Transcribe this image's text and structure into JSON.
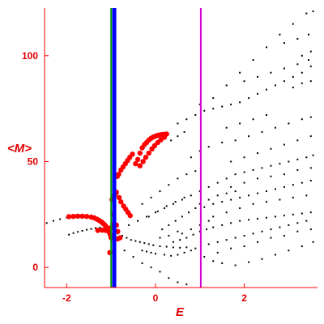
{
  "chart_data": {
    "type": "scatter",
    "title": "",
    "xlabel": "E",
    "ylabel": "<M>",
    "xlim": [
      -2.5,
      3.65
    ],
    "ylim": [
      -9.5,
      122.5
    ],
    "x_ticks": [
      -2,
      0,
      2
    ],
    "y_ticks": [
      0,
      50,
      100
    ],
    "grid": false,
    "legend": "none",
    "colors": {
      "axes": "#ff0000",
      "tick_labels": "#e00000",
      "levels": "#000000",
      "highlight": "#ff0000",
      "line_green": "#00a000",
      "line_blue": "#0000ff",
      "line_magenta": "#d000d0"
    },
    "vertical_lines": [
      {
        "x": -1.0,
        "color": "#00a000"
      },
      {
        "x": -0.93,
        "color": "#0000ff"
      },
      {
        "x": 1.02,
        "color": "#d000d0"
      }
    ],
    "series": [
      {
        "marker": "small-dot",
        "points": [
          [
            -2.45,
            21
          ],
          [
            -2.3,
            22
          ],
          [
            -2.15,
            22.8
          ],
          [
            -2.0,
            23.5
          ],
          [
            -1.85,
            24
          ],
          [
            -1.75,
            24.2
          ],
          [
            -1.95,
            15.5
          ],
          [
            -1.85,
            16.2
          ],
          [
            -1.75,
            16.8
          ],
          [
            -1.65,
            17.3
          ],
          [
            -1.55,
            17.8
          ],
          [
            -1.45,
            18.2
          ],
          [
            -1.35,
            18.6
          ],
          [
            -1.25,
            18.8
          ],
          [
            -0.85,
            16
          ],
          [
            -0.75,
            15
          ],
          [
            -0.65,
            14
          ],
          [
            -0.55,
            13
          ],
          [
            -0.45,
            12.5
          ],
          [
            -0.35,
            12
          ],
          [
            -0.25,
            11.5
          ],
          [
            -0.15,
            11
          ],
          [
            -0.05,
            10.5
          ],
          [
            0.1,
            10
          ],
          [
            0.25,
            9.8
          ],
          [
            0.4,
            9.5
          ],
          [
            0.55,
            9.3
          ],
          [
            0.7,
            9.5
          ],
          [
            -0.3,
            8
          ],
          [
            -0.2,
            7.5
          ],
          [
            -0.1,
            7
          ],
          [
            0.0,
            6.5
          ],
          [
            0.2,
            6
          ],
          [
            0.35,
            5.5
          ],
          [
            0.5,
            6
          ],
          [
            0.65,
            7
          ],
          [
            0.8,
            8
          ],
          [
            0.9,
            9
          ],
          [
            0.4,
            12
          ],
          [
            0.55,
            13
          ],
          [
            0.7,
            14
          ],
          [
            0.85,
            15.5
          ],
          [
            1.0,
            17
          ],
          [
            1.15,
            18
          ],
          [
            1.3,
            19
          ],
          [
            1.5,
            20
          ],
          [
            1.7,
            21
          ],
          [
            1.9,
            22
          ],
          [
            2.1,
            22.5
          ],
          [
            2.3,
            23
          ],
          [
            2.5,
            23.5
          ],
          [
            2.7,
            24
          ],
          [
            2.9,
            24.5
          ],
          [
            3.1,
            25
          ],
          [
            3.3,
            25.5
          ],
          [
            3.5,
            26
          ],
          [
            1.2,
            11
          ],
          [
            1.4,
            12
          ],
          [
            1.6,
            13
          ],
          [
            1.8,
            14
          ],
          [
            2.0,
            15
          ],
          [
            2.2,
            16
          ],
          [
            2.4,
            17
          ],
          [
            2.6,
            18
          ],
          [
            2.8,
            19
          ],
          [
            3.0,
            20
          ],
          [
            3.2,
            21
          ],
          [
            3.4,
            22
          ],
          [
            1.1,
            5
          ],
          [
            1.3,
            3
          ],
          [
            1.5,
            2
          ],
          [
            1.8,
            1
          ],
          [
            2.1,
            2.5
          ],
          [
            2.4,
            4
          ],
          [
            2.7,
            6
          ],
          [
            3.0,
            8
          ],
          [
            3.3,
            10
          ],
          [
            3.55,
            12
          ],
          [
            -0.6,
            20
          ],
          [
            -0.4,
            22
          ],
          [
            -0.2,
            24
          ],
          [
            0.0,
            26
          ],
          [
            0.2,
            28
          ],
          [
            0.4,
            30
          ],
          [
            0.6,
            32
          ],
          [
            0.8,
            34
          ],
          [
            1.0,
            36
          ],
          [
            -0.3,
            30
          ],
          [
            -0.1,
            33
          ],
          [
            0.1,
            36
          ],
          [
            0.3,
            39
          ],
          [
            0.5,
            42
          ],
          [
            0.7,
            44
          ],
          [
            0.9,
            45.5
          ],
          [
            0.15,
            18
          ],
          [
            0.3,
            20
          ],
          [
            0.45,
            22
          ],
          [
            0.6,
            24
          ],
          [
            0.75,
            26
          ],
          [
            0.9,
            28
          ],
          [
            1.1,
            28.5
          ],
          [
            1.3,
            30
          ],
          [
            1.5,
            31
          ],
          [
            1.7,
            32
          ],
          [
            1.9,
            33
          ],
          [
            2.1,
            34
          ],
          [
            2.3,
            35
          ],
          [
            2.5,
            36
          ],
          [
            2.7,
            37
          ],
          [
            2.9,
            38
          ],
          [
            3.1,
            39
          ],
          [
            3.3,
            40
          ],
          [
            3.5,
            41
          ],
          [
            1.2,
            38
          ],
          [
            1.4,
            40
          ],
          [
            1.6,
            42
          ],
          [
            1.8,
            44
          ],
          [
            2.0,
            45
          ],
          [
            2.2,
            46
          ],
          [
            2.4,
            47
          ],
          [
            2.6,
            48
          ],
          [
            2.8,
            49
          ],
          [
            3.0,
            50
          ],
          [
            3.2,
            51
          ],
          [
            3.4,
            52
          ],
          [
            3.55,
            53
          ],
          [
            0.8,
            52
          ],
          [
            1.0,
            55
          ],
          [
            1.2,
            57
          ],
          [
            1.5,
            59
          ],
          [
            1.8,
            60
          ],
          [
            2.1,
            62
          ],
          [
            2.4,
            64
          ],
          [
            2.7,
            66
          ],
          [
            3.0,
            68
          ],
          [
            3.3,
            70
          ],
          [
            3.5,
            71
          ],
          [
            0.5,
            68
          ],
          [
            0.7,
            70
          ],
          [
            0.9,
            72
          ],
          [
            1.1,
            74
          ],
          [
            1.3,
            75
          ],
          [
            1.5,
            76
          ],
          [
            1.7,
            77
          ],
          [
            1.9,
            78
          ],
          [
            2.1,
            80
          ],
          [
            2.3,
            82
          ],
          [
            2.5,
            84
          ],
          [
            2.7,
            86
          ],
          [
            2.9,
            88
          ],
          [
            3.1,
            90
          ],
          [
            3.3,
            92
          ],
          [
            3.5,
            95
          ],
          [
            0.35,
            60
          ],
          [
            0.5,
            62
          ],
          [
            0.65,
            64
          ],
          [
            1.0,
            77
          ],
          [
            1.3,
            80
          ],
          [
            1.6,
            86
          ],
          [
            1.9,
            92
          ],
          [
            2.2,
            98
          ],
          [
            2.5,
            104
          ],
          [
            2.8,
            110
          ],
          [
            3.1,
            115
          ],
          [
            3.4,
            120
          ],
          [
            3.55,
            121
          ],
          [
            2.0,
            88
          ],
          [
            2.3,
            90
          ],
          [
            2.6,
            92
          ],
          [
            2.9,
            94
          ],
          [
            3.2,
            96
          ],
          [
            3.45,
            98
          ],
          [
            2.9,
            106
          ],
          [
            3.2,
            108
          ],
          [
            3.45,
            110
          ],
          [
            3.3,
            100
          ],
          [
            3.5,
            102
          ],
          [
            3.1,
            85
          ],
          [
            3.3,
            87
          ],
          [
            3.5,
            88
          ],
          [
            1.6,
            66
          ],
          [
            1.9,
            68
          ],
          [
            2.2,
            70
          ],
          [
            2.5,
            72
          ],
          [
            1.7,
            50
          ],
          [
            2.0,
            52
          ],
          [
            2.3,
            54
          ],
          [
            2.6,
            56
          ],
          [
            2.9,
            58
          ],
          [
            3.2,
            60
          ],
          [
            3.5,
            62
          ],
          [
            1.3,
            24
          ],
          [
            1.6,
            26
          ],
          [
            1.9,
            28
          ],
          [
            2.2,
            30
          ],
          [
            2.5,
            31
          ],
          [
            2.8,
            32
          ],
          [
            3.1,
            33
          ],
          [
            3.4,
            34
          ],
          [
            0.6,
            16
          ],
          [
            0.8,
            18
          ],
          [
            1.0,
            20
          ],
          [
            1.2,
            22
          ],
          [
            1.4,
            7
          ],
          [
            1.7,
            9
          ],
          [
            2.0,
            10
          ],
          [
            2.3,
            12
          ],
          [
            2.6,
            14
          ],
          [
            2.9,
            15
          ],
          [
            3.2,
            17
          ],
          [
            3.5,
            18
          ],
          [
            0.1,
            14
          ],
          [
            0.3,
            15
          ],
          [
            0.5,
            17
          ],
          [
            -0.7,
            8
          ],
          [
            -0.5,
            5
          ],
          [
            -0.3,
            2
          ],
          [
            -0.1,
            0
          ],
          [
            0.1,
            -2
          ],
          [
            0.3,
            -5
          ],
          [
            0.5,
            -7
          ],
          [
            0.7,
            -8
          ],
          [
            -0.15,
            24
          ],
          [
            0.05,
            26.5
          ],
          [
            0.25,
            29
          ],
          [
            0.45,
            31
          ],
          [
            0.65,
            33
          ],
          [
            1.7,
            38
          ],
          [
            2.0,
            40
          ],
          [
            2.3,
            42
          ],
          [
            2.6,
            43
          ],
          [
            2.9,
            44
          ],
          [
            3.2,
            46
          ],
          [
            3.5,
            47
          ],
          [
            1.0,
            30
          ],
          [
            1.2,
            32
          ],
          [
            1.4,
            34
          ],
          [
            1.6,
            35
          ],
          [
            1.8,
            36
          ]
        ]
      },
      {
        "marker": "red-circle",
        "points": [
          [
            -1.95,
            24
          ],
          [
            -1.85,
            24.1
          ],
          [
            -1.75,
            24.2
          ],
          [
            -1.65,
            24.2
          ],
          [
            -1.55,
            24.1
          ],
          [
            -1.45,
            23.8
          ],
          [
            -1.38,
            23.4
          ],
          [
            -1.32,
            22.8
          ],
          [
            -1.27,
            22.2
          ],
          [
            -1.22,
            21.5
          ],
          [
            -1.18,
            20.8
          ],
          [
            -1.14,
            20
          ],
          [
            -1.11,
            19.2
          ],
          [
            -1.08,
            18.3
          ],
          [
            -1.06,
            17.6
          ],
          [
            -1.3,
            17.5
          ],
          [
            -1.2,
            17.6
          ],
          [
            -1.12,
            17.5
          ],
          [
            -1.05,
            16.8
          ],
          [
            -1.02,
            15.5
          ],
          [
            -1.0,
            14
          ],
          [
            -1.03,
            7
          ],
          [
            -1.0,
            18.8
          ],
          [
            -0.96,
            20.5
          ],
          [
            -0.95,
            25
          ],
          [
            -0.98,
            32
          ],
          [
            -0.96,
            33
          ],
          [
            -0.93,
            34
          ],
          [
            -0.9,
            35
          ],
          [
            -0.88,
            35.5
          ],
          [
            -0.88,
            20
          ],
          [
            -0.85,
            17
          ],
          [
            -0.8,
            14
          ],
          [
            -0.85,
            13.5
          ],
          [
            -0.82,
            33
          ],
          [
            -0.78,
            31
          ],
          [
            -0.72,
            29
          ],
          [
            -0.67,
            27.5
          ],
          [
            -0.62,
            26
          ],
          [
            -0.57,
            24.5
          ],
          [
            -0.86,
            43
          ],
          [
            -0.83,
            44
          ],
          [
            -0.78,
            46
          ],
          [
            -0.73,
            47.5
          ],
          [
            -0.68,
            49
          ],
          [
            -0.63,
            50.5
          ],
          [
            -0.58,
            52
          ],
          [
            -0.52,
            53.5
          ],
          [
            -0.45,
            49
          ],
          [
            -0.4,
            51
          ],
          [
            -0.35,
            54
          ],
          [
            -0.3,
            56.5
          ],
          [
            -0.25,
            58
          ],
          [
            -0.2,
            59
          ],
          [
            -0.15,
            60.2
          ],
          [
            -0.1,
            61
          ],
          [
            -0.05,
            61.6
          ],
          [
            0.0,
            62
          ],
          [
            0.05,
            62.4
          ],
          [
            0.1,
            62.6
          ],
          [
            0.15,
            62.8
          ],
          [
            0.2,
            62.9
          ],
          [
            0.25,
            63
          ],
          [
            -0.35,
            48
          ],
          [
            -0.28,
            50
          ],
          [
            -0.22,
            52
          ],
          [
            -0.15,
            54
          ],
          [
            -0.08,
            56
          ],
          [
            -0.02,
            57.5
          ],
          [
            0.05,
            59
          ],
          [
            0.12,
            60.3
          ],
          [
            0.2,
            61.5
          ]
        ]
      }
    ]
  }
}
